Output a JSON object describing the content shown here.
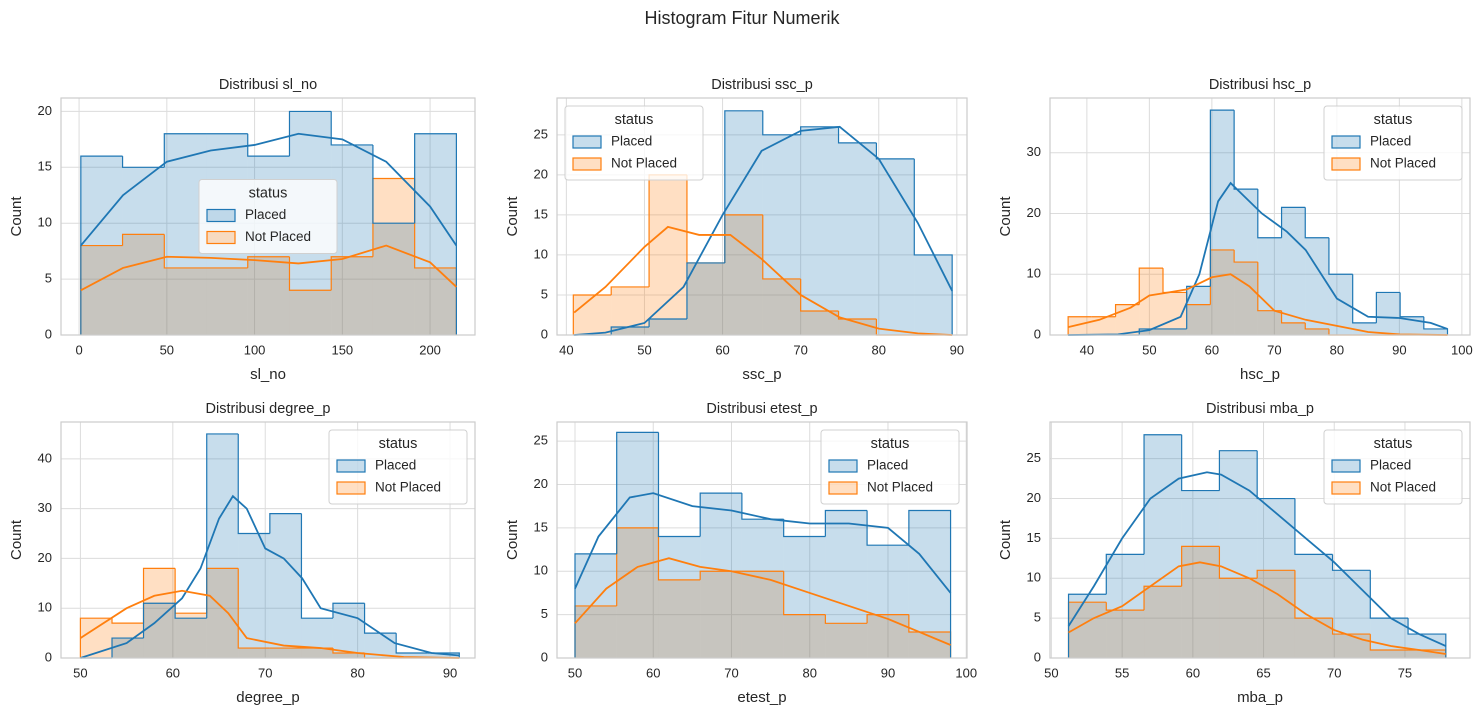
{
  "title": "Histogram Fitur Numerik",
  "chart_data": [
    {
      "type": "histogram",
      "title": "Distribusi sl_no",
      "x_label": "sl_no",
      "y_label": "Count",
      "xlim": [
        -10.3,
        225.6
      ],
      "xticks": [
        0,
        50,
        100,
        150,
        200
      ],
      "ylim": [
        0,
        21.2
      ],
      "yticks": [
        0,
        5,
        10,
        15,
        20
      ],
      "grid": true,
      "legend_title": "status",
      "legend_position": "center",
      "bins": [
        1,
        24.78,
        48.56,
        72.33,
        96.11,
        119.89,
        143.67,
        167.44,
        191.22,
        215
      ],
      "series": [
        {
          "name": "Placed",
          "color": "#1f77b4",
          "values": [
            16,
            15,
            18,
            18,
            16,
            20,
            17,
            10,
            18
          ],
          "kde_x": [
            1,
            25,
            50,
            75,
            100,
            125,
            150,
            175,
            200,
            215
          ],
          "kde_values": [
            8,
            12.5,
            15.5,
            16.5,
            17,
            18,
            17.5,
            15.5,
            11.5,
            8
          ]
        },
        {
          "name": "Not Placed",
          "color": "#ff7f0e",
          "values": [
            8,
            9,
            6,
            6,
            7,
            4,
            7,
            14,
            6
          ],
          "kde_x": [
            1,
            25,
            50,
            75,
            100,
            125,
            150,
            175,
            200,
            215
          ],
          "kde_values": [
            4,
            6,
            7,
            6.9,
            6.7,
            6.4,
            6.8,
            8,
            6.5,
            4.3
          ]
        }
      ]
    },
    {
      "type": "histogram",
      "title": "Distribusi ssc_p",
      "x_label": "ssc_p",
      "y_label": "Count",
      "xlim": [
        38.8,
        91.3
      ],
      "xticks": [
        40,
        50,
        60,
        70,
        80,
        90
      ],
      "ylim": [
        0,
        29.6
      ],
      "yticks": [
        0,
        5,
        10,
        15,
        20,
        25
      ],
      "grid": true,
      "legend_title": "status",
      "legend_position": "upper left",
      "bins": [
        40.89,
        45.74,
        50.59,
        55.44,
        60.29,
        65.15,
        70.0,
        74.85,
        79.7,
        84.55,
        89.4
      ],
      "series": [
        {
          "name": "Placed",
          "color": "#1f77b4",
          "values": [
            0,
            1,
            2,
            9,
            28,
            25,
            26,
            24,
            22,
            10
          ],
          "kde_x": [
            41,
            45,
            50,
            55,
            60,
            65,
            70,
            75,
            80,
            85,
            89.4
          ],
          "kde_values": [
            0,
            0.3,
            1.5,
            6,
            15,
            23,
            25.5,
            26,
            22,
            14,
            5.5
          ]
        },
        {
          "name": "Not Placed",
          "color": "#ff7f0e",
          "values": [
            5,
            6,
            20,
            9,
            15,
            7,
            3,
            2,
            0,
            0
          ],
          "kde_x": [
            41,
            45,
            50,
            53,
            57,
            61,
            65,
            70,
            75,
            80,
            85,
            89.4
          ],
          "kde_values": [
            2.8,
            6,
            11,
            13.5,
            12.5,
            12.5,
            9.5,
            5,
            2.2,
            0.8,
            0.2,
            0
          ]
        }
      ]
    },
    {
      "type": "histogram",
      "title": "Distribusi hsc_p",
      "x_label": "hsc_p",
      "y_label": "Count",
      "xlim": [
        34.1,
        101.3
      ],
      "xticks": [
        40,
        50,
        60,
        70,
        80,
        90,
        100
      ],
      "ylim": [
        0,
        39
      ],
      "yticks": [
        0,
        10,
        20,
        30
      ],
      "grid": true,
      "legend_title": "status",
      "legend_position": "upper right",
      "bins": [
        37,
        40.79,
        44.59,
        48.38,
        52.18,
        55.97,
        59.76,
        63.56,
        67.35,
        71.15,
        74.94,
        78.73,
        82.53,
        86.32,
        90.12,
        93.91,
        97.7
      ],
      "series": [
        {
          "name": "Placed",
          "color": "#1f77b4",
          "values": [
            0,
            0,
            0,
            1,
            1,
            8,
            37,
            24,
            16,
            21,
            16,
            10,
            2,
            7,
            3,
            1
          ],
          "kde_x": [
            37,
            45,
            50,
            55,
            58,
            61,
            63,
            65,
            68,
            72,
            75,
            80,
            85,
            90,
            95,
            97.7
          ],
          "kde_values": [
            0,
            0.1,
            0.8,
            3,
            10,
            22,
            25,
            23,
            20,
            17,
            14,
            6,
            3,
            2.8,
            2,
            1
          ]
        },
        {
          "name": "Not Placed",
          "color": "#ff7f0e",
          "values": [
            3,
            3,
            5,
            11,
            7,
            5,
            14,
            12,
            4,
            2,
            1,
            0,
            0,
            0,
            0,
            0
          ],
          "kde_x": [
            37,
            42,
            47,
            50,
            53,
            56,
            60,
            63,
            66,
            70,
            75,
            80,
            85,
            90,
            97.7
          ],
          "kde_values": [
            1.3,
            2.5,
            4.5,
            6.5,
            7,
            7.5,
            9.5,
            10,
            8,
            4,
            2.5,
            1.5,
            0.5,
            0.1,
            0
          ]
        }
      ]
    },
    {
      "type": "histogram",
      "title": "Distribusi degree_p",
      "x_label": "degree_p",
      "y_label": "Count",
      "xlim": [
        47.9,
        92.7
      ],
      "xticks": [
        50,
        60,
        70,
        80,
        90
      ],
      "ylim": [
        0,
        47.4
      ],
      "yticks": [
        0,
        10,
        20,
        30,
        40
      ],
      "grid": true,
      "legend_title": "status",
      "legend_position": "upper right",
      "bins": [
        50,
        53.42,
        56.83,
        60.25,
        63.67,
        67.08,
        70.5,
        73.92,
        77.33,
        80.75,
        84.17,
        87.58,
        91
      ],
      "series": [
        {
          "name": "Placed",
          "color": "#1f77b4",
          "values": [
            0,
            4,
            11,
            8,
            45,
            25,
            29,
            8,
            11,
            5,
            1,
            1
          ],
          "kde_x": [
            50,
            55,
            58,
            61,
            63,
            65,
            66.5,
            68,
            70,
            72,
            74,
            76,
            80,
            84,
            88,
            91
          ],
          "kde_values": [
            0,
            3,
            7,
            12,
            18,
            28,
            32.5,
            30,
            22,
            20,
            16,
            10,
            8,
            3,
            1,
            0.5
          ]
        },
        {
          "name": "Not Placed",
          "color": "#ff7f0e",
          "values": [
            8,
            7,
            18,
            9,
            18,
            2,
            2,
            2,
            1,
            0,
            0,
            0
          ],
          "kde_x": [
            50,
            55,
            58,
            61,
            64,
            66,
            68,
            72,
            76,
            80,
            85,
            91
          ],
          "kde_values": [
            4,
            10,
            12.5,
            13.5,
            12.5,
            9,
            4,
            2.5,
            2,
            1,
            0.2,
            0
          ]
        }
      ]
    },
    {
      "type": "histogram",
      "title": "Distribusi etest_p",
      "x_label": "etest_p",
      "y_label": "Count",
      "xlim": [
        47.7,
        100.1
      ],
      "xticks": [
        50,
        60,
        70,
        80,
        90,
        100
      ],
      "ylim": [
        0,
        27.2
      ],
      "yticks": [
        0,
        5,
        10,
        15,
        20,
        25
      ],
      "grid": true,
      "legend_title": "status",
      "legend_position": "upper right",
      "bins": [
        50,
        55.33,
        60.67,
        66,
        71.33,
        76.67,
        82,
        87.33,
        92.67,
        98
      ],
      "series": [
        {
          "name": "Placed",
          "color": "#1f77b4",
          "values": [
            12,
            26,
            14,
            19,
            16,
            14,
            17,
            13,
            17
          ],
          "kde_x": [
            50,
            53,
            57,
            60,
            65,
            70,
            75,
            80,
            85,
            90,
            94,
            98
          ],
          "kde_values": [
            8,
            14,
            18.5,
            19,
            17.5,
            17,
            16,
            15.5,
            15.5,
            15,
            12,
            7.5
          ]
        },
        {
          "name": "Not Placed",
          "color": "#ff7f0e",
          "values": [
            6,
            15,
            9,
            10,
            10,
            5,
            4,
            5,
            3
          ],
          "kde_x": [
            50,
            54,
            58,
            62,
            66,
            70,
            75,
            80,
            85,
            90,
            94,
            98
          ],
          "kde_values": [
            4,
            8,
            10.5,
            11.5,
            10.5,
            10,
            9,
            7.5,
            6,
            4.5,
            3,
            1.5
          ]
        }
      ]
    },
    {
      "type": "histogram",
      "title": "Distribusi mba_p",
      "x_label": "mba_p",
      "y_label": "Count",
      "xlim": [
        49.9,
        79.6
      ],
      "xticks": [
        50,
        55,
        60,
        65,
        70,
        75
      ],
      "ylim": [
        0,
        29.6
      ],
      "yticks": [
        0,
        5,
        10,
        15,
        20,
        25
      ],
      "grid": true,
      "legend_title": "status",
      "legend_position": "upper right",
      "bins": [
        51.21,
        53.88,
        56.55,
        59.21,
        61.88,
        64.55,
        67.22,
        69.88,
        72.55,
        75.22,
        77.89
      ],
      "series": [
        {
          "name": "Placed",
          "color": "#1f77b4",
          "values": [
            8,
            13,
            28,
            21,
            26,
            20,
            13,
            11,
            5,
            3
          ],
          "kde_x": [
            51.21,
            53,
            55,
            57,
            59,
            61,
            62,
            64,
            66,
            68,
            70,
            72,
            74,
            76,
            77.89
          ],
          "kde_values": [
            4,
            9,
            15,
            20,
            22.5,
            23.3,
            23,
            21,
            18,
            15,
            12,
            8.5,
            5,
            3,
            1.5
          ]
        },
        {
          "name": "Not Placed",
          "color": "#ff7f0e",
          "values": [
            7,
            6,
            9,
            14,
            10,
            11,
            5,
            3,
            1,
            1
          ],
          "kde_x": [
            51.21,
            53,
            55,
            57,
            59,
            60.5,
            62,
            64,
            66,
            68,
            70,
            72,
            74,
            76,
            77.89
          ],
          "kde_values": [
            3.2,
            5,
            6.5,
            9,
            11.5,
            12,
            11.5,
            10,
            8,
            5.5,
            3.5,
            2.3,
            1.5,
            1,
            0.5
          ]
        }
      ]
    }
  ]
}
